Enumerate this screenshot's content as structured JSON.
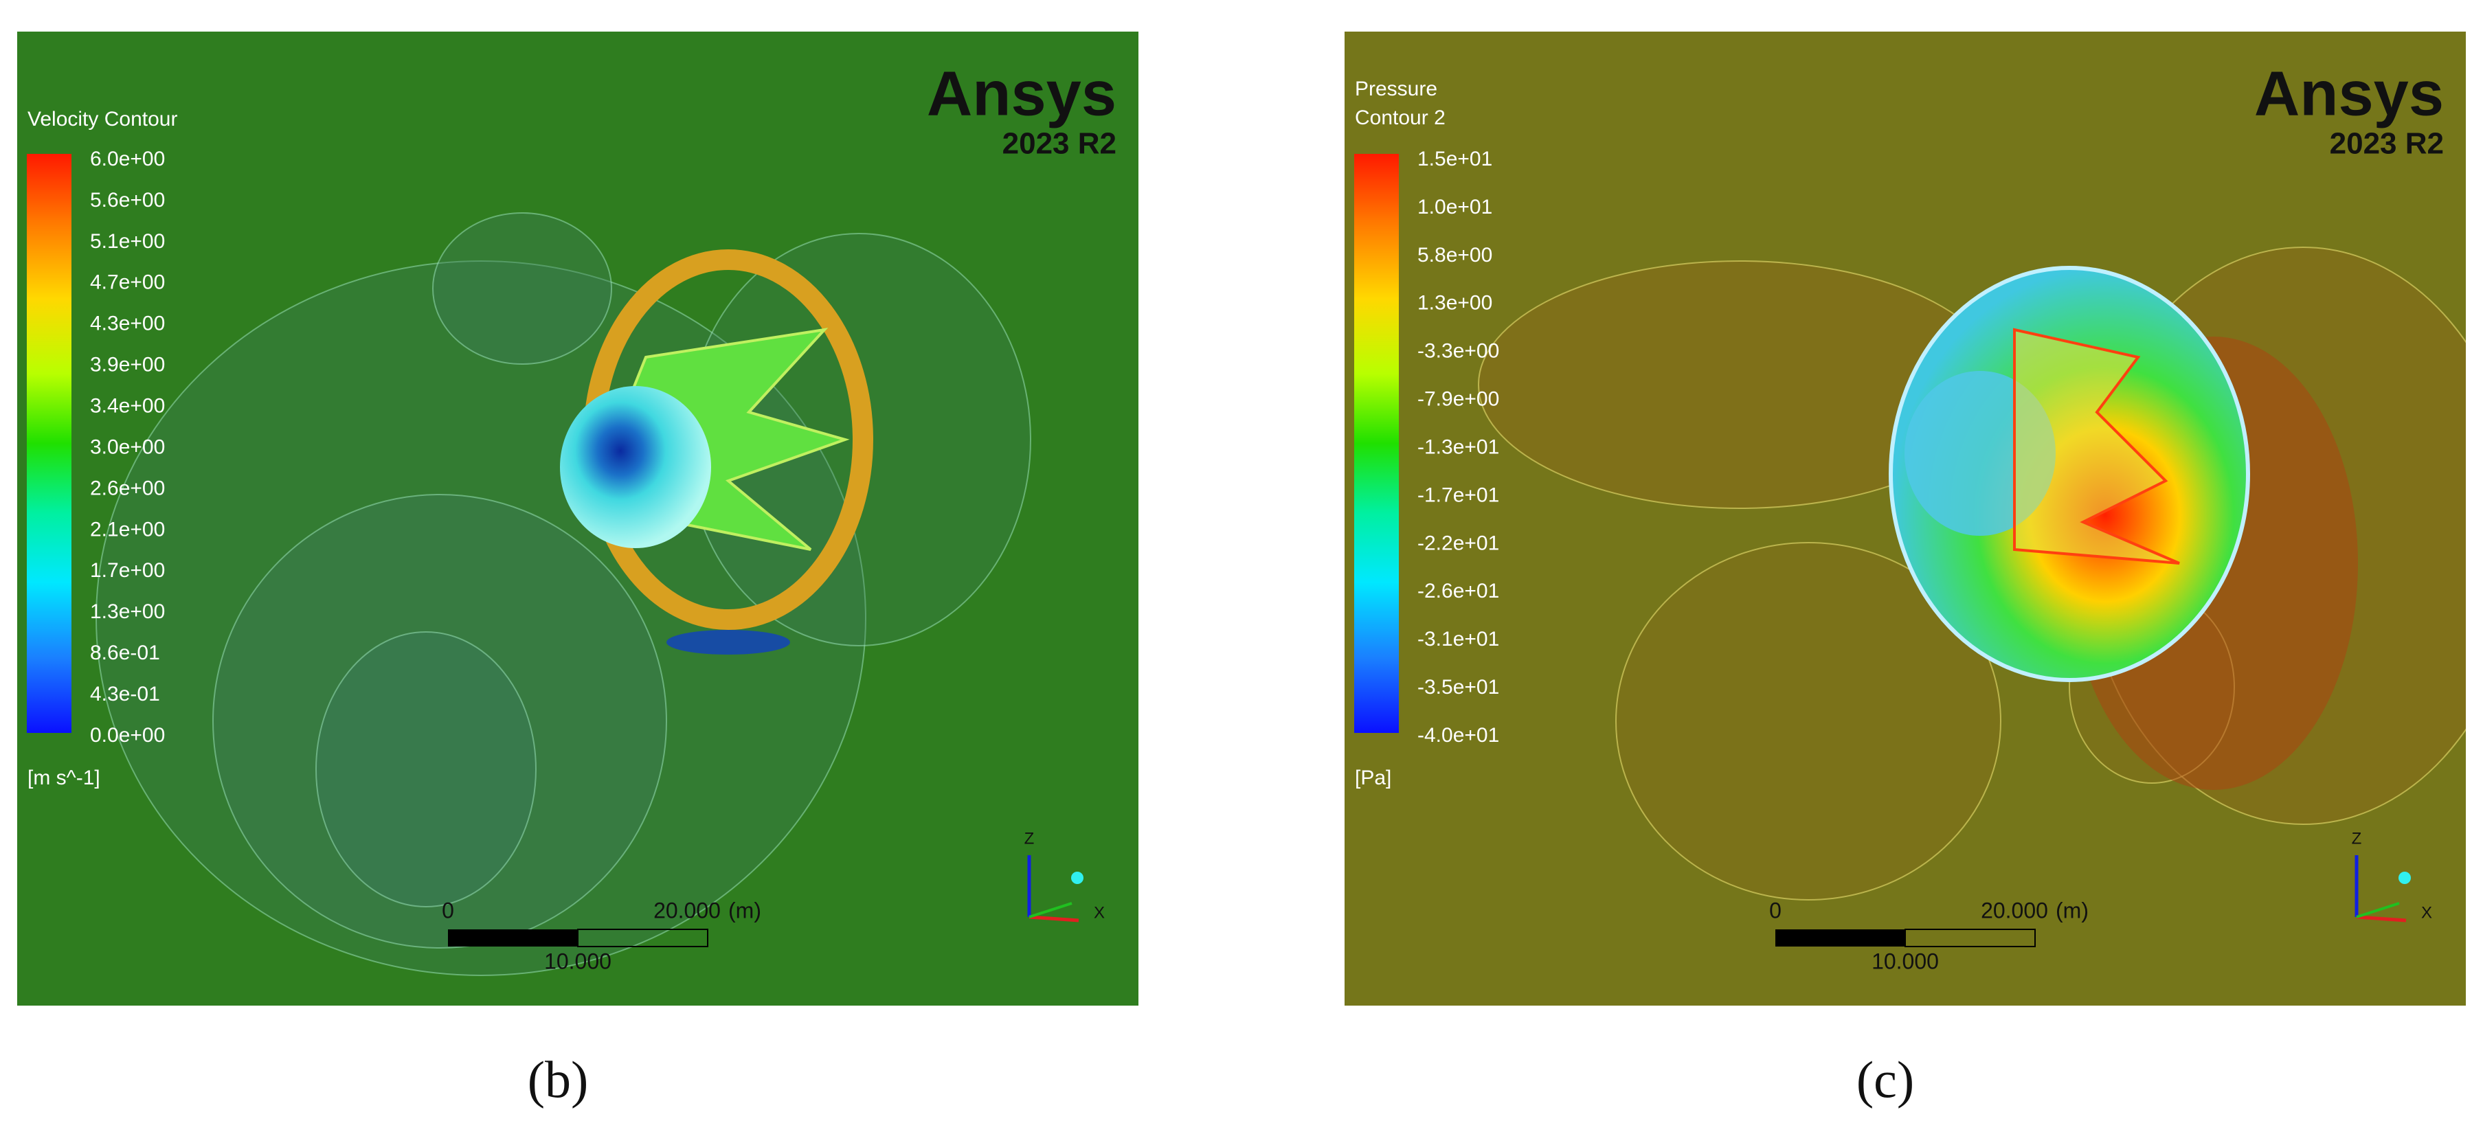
{
  "panels": [
    {
      "legend": {
        "title": [
          "Velocity Contour"
        ],
        "levels": [
          "6.0e+00",
          "5.6e+00",
          "5.1e+00",
          "4.7e+00",
          "4.3e+00",
          "3.9e+00",
          "3.4e+00",
          "3.0e+00",
          "2.6e+00",
          "2.1e+00",
          "1.7e+00",
          "1.3e+00",
          "8.6e-01",
          "4.3e-01",
          "0.0e+00"
        ],
        "unit": "[m s^-1]"
      },
      "logo": "Ansys",
      "version": "2023 R2",
      "scale": {
        "start": "0",
        "end": "20.000",
        "unit": "(m)",
        "mid": "10.000"
      },
      "axes": [
        "Z",
        "X"
      ],
      "caption": "(b)"
    },
    {
      "legend": {
        "title": [
          "Pressure",
          "Contour 2"
        ],
        "levels": [
          "1.5e+01",
          "1.0e+01",
          "5.8e+00",
          "1.3e+00",
          "-3.3e+00",
          "-7.9e+00",
          "-1.3e+01",
          "-1.7e+01",
          "-2.2e+01",
          "-2.6e+01",
          "-3.1e+01",
          "-3.5e+01",
          "-4.0e+01"
        ],
        "unit": "[Pa]"
      },
      "logo": "Ansys",
      "version": "2023 R2",
      "scale": {
        "start": "0",
        "end": "20.000",
        "unit": "(m)",
        "mid": "10.000"
      },
      "axes": [
        "Z",
        "X"
      ],
      "caption": "(c)"
    }
  ]
}
